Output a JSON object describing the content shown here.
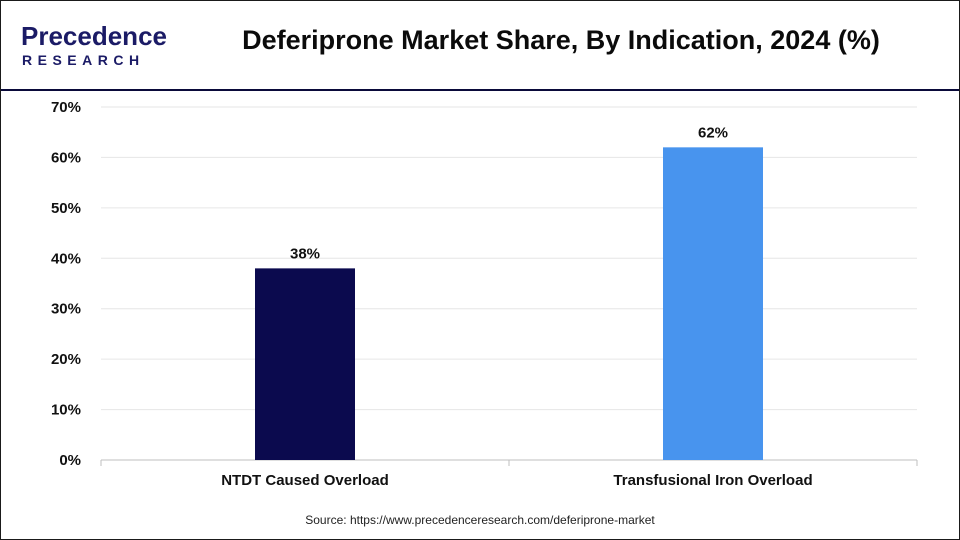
{
  "header": {
    "logo_line1": "Precedence",
    "logo_line2": "RESEARCH",
    "title": "Deferiprone Market Share, By Indication, 2024 (%)"
  },
  "colors": {
    "bar_dark": "#0b0a4e",
    "bar_light": "#4894ee",
    "grid": "#e6e6e6",
    "axis": "#bfbfbf",
    "logo_blue": "#1b1b66",
    "logo_accent": "#3a8be8"
  },
  "chart_data": {
    "type": "bar",
    "title": "Deferiprone Market Share, By Indication, 2024 (%)",
    "categories": [
      "NTDT Caused Overload",
      "Transfusional Iron Overload"
    ],
    "values": [
      38,
      62
    ],
    "data_labels": [
      "38%",
      "62%"
    ],
    "bar_colors": [
      "#0b0a4e",
      "#4894ee"
    ],
    "ylim": [
      0,
      70
    ],
    "yticks": [
      0,
      10,
      20,
      30,
      40,
      50,
      60,
      70
    ],
    "ytick_labels": [
      "0%",
      "10%",
      "20%",
      "30%",
      "40%",
      "50%",
      "60%",
      "70%"
    ],
    "grid": true,
    "legend": "none"
  },
  "source": "Source: https://www.precedenceresearch.com/deferiprone-market"
}
